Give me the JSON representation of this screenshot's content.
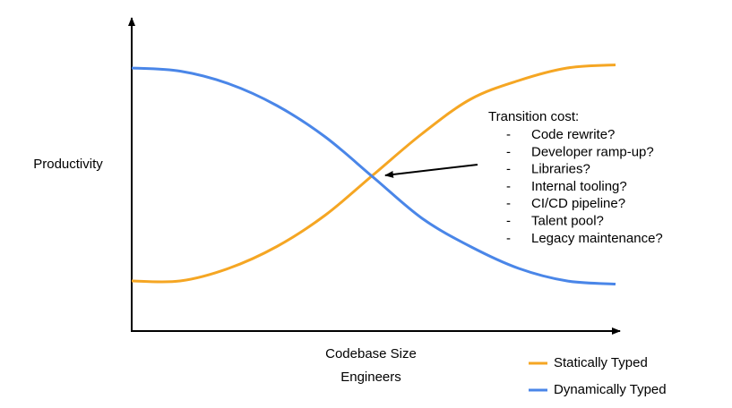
{
  "chart_data": {
    "type": "line",
    "ylabel": "Productivity",
    "xlabel": [
      "Codebase Size",
      "Engineers"
    ],
    "x": [
      0,
      10,
      20,
      30,
      40,
      50,
      60,
      70,
      80,
      90,
      100
    ],
    "xlim": [
      0,
      100
    ],
    "ylim": [
      0,
      100
    ],
    "grid": false,
    "legend": "lower right",
    "series": [
      {
        "name": "Statically Typed",
        "color": "#f5a623",
        "values": [
          16,
          16,
          20,
          27,
          37,
          50,
          63,
          74,
          80,
          84,
          85
        ]
      },
      {
        "name": "Dynamically Typed",
        "color": "#4a86e8",
        "values": [
          84,
          83,
          79,
          72,
          62,
          49,
          36,
          27,
          20,
          16,
          15
        ]
      }
    ],
    "annotation": {
      "heading": "Transition cost:",
      "bullet": "-",
      "items": [
        "Code rewrite?",
        "Developer ramp-up?",
        "Libraries?",
        "Internal tooling?",
        "CI/CD pipeline?",
        "Talent pool?",
        "Legacy maintenance?"
      ]
    }
  }
}
